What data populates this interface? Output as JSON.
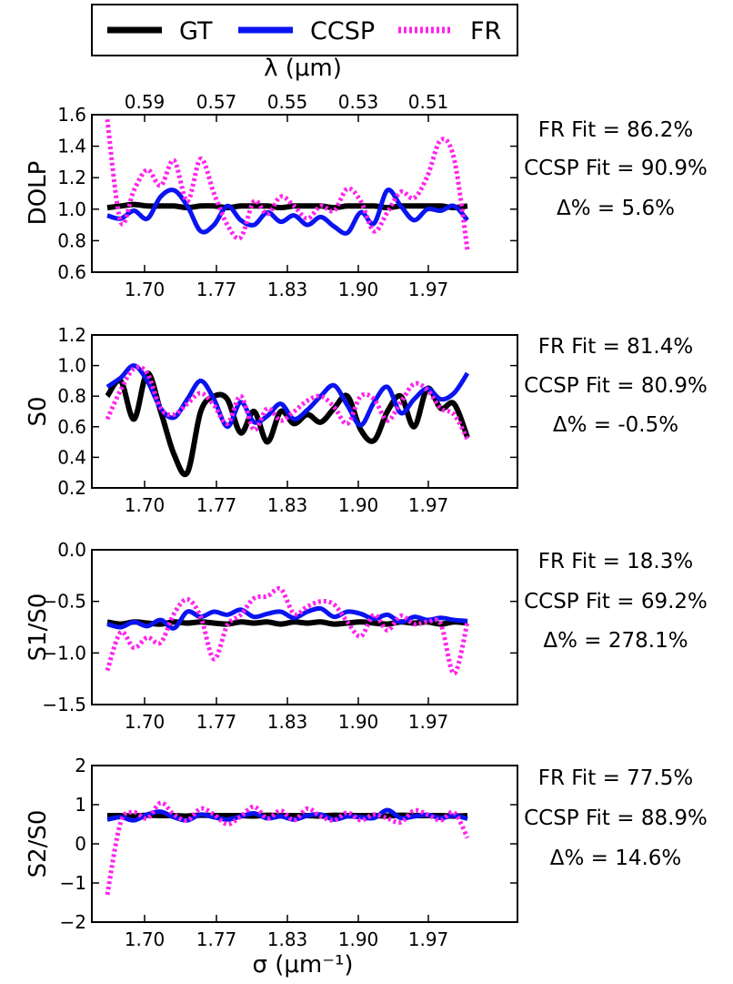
{
  "legend": [
    {
      "label": "GT",
      "color": "#000000",
      "style": "solid"
    },
    {
      "label": "CCSP",
      "color": "#0a14f0",
      "style": "solid"
    },
    {
      "label": "FR",
      "color": "#ff22ee",
      "style": "dotted"
    }
  ],
  "top_axis": {
    "label": "λ (μm)",
    "tick_labels": [
      "0.59",
      "0.57",
      "0.55",
      "0.53",
      "0.51"
    ]
  },
  "bottom_axis": {
    "label": "σ (μm⁻¹)",
    "tick_labels": [
      "1.70",
      "1.77",
      "1.83",
      "1.90",
      "1.97"
    ]
  },
  "chart_data": [
    {
      "type": "line",
      "ylabel": "DOLP",
      "ylim": [
        0.6,
        1.6
      ],
      "yticks": [
        "0.6",
        "0.8",
        "1.0",
        "1.2",
        "1.4",
        "1.6"
      ],
      "annotations": [
        "FR Fit = 86.2%",
        "CCSP Fit = 90.9%",
        "Δ% = 5.6%"
      ],
      "series": [
        {
          "name": "GT",
          "values": [
            1.01,
            1.02,
            1.03,
            1.02,
            1.02,
            1.02,
            1.01,
            1.02,
            1.02,
            1.01,
            1.02,
            1.02,
            1.02,
            1.01,
            1.02,
            1.02,
            1.02,
            1.01,
            1.02,
            1.02,
            1.02,
            1.01,
            1.02,
            1.02,
            1.02,
            1.02,
            1.01,
            1.02
          ]
        },
        {
          "name": "CCSP",
          "values": [
            0.96,
            0.94,
            0.99,
            0.94,
            1.08,
            1.12,
            1.02,
            0.86,
            0.9,
            1.02,
            0.93,
            0.9,
            0.98,
            0.92,
            0.96,
            0.9,
            0.95,
            0.89,
            0.85,
            0.98,
            0.91,
            1.12,
            1.02,
            0.93,
            1.0,
            0.99,
            1.02,
            0.93
          ]
        },
        {
          "name": "FR",
          "values": [
            1.57,
            0.92,
            1.12,
            1.25,
            1.15,
            1.31,
            1.05,
            1.32,
            1.1,
            0.9,
            0.82,
            1.05,
            0.97,
            1.08,
            1.02,
            0.94,
            1.02,
            0.99,
            1.13,
            1.05,
            0.86,
            0.98,
            1.11,
            1.07,
            1.21,
            1.44,
            1.32,
            0.74
          ]
        }
      ]
    },
    {
      "type": "line",
      "ylabel": "S0",
      "ylim": [
        0.2,
        1.2
      ],
      "yticks": [
        "0.2",
        "0.4",
        "0.6",
        "0.8",
        "1.0",
        "1.2"
      ],
      "annotations": [
        "FR Fit = 81.4%",
        "CCSP Fit = 80.9%",
        "Δ% = -0.5%"
      ],
      "series": [
        {
          "name": "GT",
          "values": [
            0.8,
            0.9,
            0.65,
            0.95,
            0.7,
            0.42,
            0.3,
            0.7,
            0.8,
            0.78,
            0.56,
            0.7,
            0.5,
            0.7,
            0.62,
            0.68,
            0.63,
            0.72,
            0.8,
            0.58,
            0.51,
            0.7,
            0.8,
            0.6,
            0.85,
            0.72,
            0.75,
            0.53
          ]
        },
        {
          "name": "CCSP",
          "values": [
            0.86,
            0.92,
            1.0,
            0.9,
            0.72,
            0.66,
            0.78,
            0.9,
            0.78,
            0.6,
            0.76,
            0.63,
            0.67,
            0.75,
            0.65,
            0.71,
            0.8,
            0.87,
            0.74,
            0.61,
            0.76,
            0.86,
            0.69,
            0.78,
            0.85,
            0.78,
            0.82,
            0.95
          ]
        },
        {
          "name": "FR",
          "values": [
            0.65,
            0.84,
            0.98,
            0.95,
            0.72,
            0.68,
            0.75,
            0.82,
            0.74,
            0.62,
            0.8,
            0.58,
            0.72,
            0.64,
            0.7,
            0.77,
            0.8,
            0.73,
            0.62,
            0.8,
            0.78,
            0.64,
            0.76,
            0.88,
            0.84,
            0.72,
            0.68,
            0.52
          ]
        }
      ]
    },
    {
      "type": "line",
      "ylabel": "S1/S0",
      "ylim": [
        -1.5,
        0.0
      ],
      "yticks": [
        "-1.5",
        "-1.0",
        "-0.5",
        "0.0"
      ],
      "annotations": [
        "FR Fit = 18.3%",
        "CCSP Fit = 69.2%",
        "Δ% = 278.1%"
      ],
      "series": [
        {
          "name": "GT",
          "values": [
            -0.7,
            -0.72,
            -0.7,
            -0.71,
            -0.72,
            -0.7,
            -0.71,
            -0.7,
            -0.71,
            -0.72,
            -0.7,
            -0.71,
            -0.7,
            -0.72,
            -0.7,
            -0.71,
            -0.7,
            -0.72,
            -0.71,
            -0.7,
            -0.71,
            -0.72,
            -0.7,
            -0.71,
            -0.7,
            -0.72,
            -0.7,
            -0.71
          ]
        },
        {
          "name": "CCSP",
          "values": [
            -0.72,
            -0.75,
            -0.7,
            -0.74,
            -0.68,
            -0.76,
            -0.6,
            -0.65,
            -0.6,
            -0.63,
            -0.58,
            -0.65,
            -0.62,
            -0.6,
            -0.66,
            -0.6,
            -0.57,
            -0.65,
            -0.6,
            -0.62,
            -0.67,
            -0.63,
            -0.7,
            -0.65,
            -0.68,
            -0.66,
            -0.68,
            -0.69
          ]
        },
        {
          "name": "FR",
          "values": [
            -1.17,
            -0.8,
            -0.95,
            -0.85,
            -0.9,
            -0.62,
            -0.48,
            -0.65,
            -1.06,
            -0.73,
            -0.63,
            -0.47,
            -0.45,
            -0.38,
            -0.62,
            -0.55,
            -0.5,
            -0.53,
            -0.7,
            -0.84,
            -0.63,
            -0.78,
            -0.64,
            -0.72,
            -0.7,
            -0.72,
            -1.2,
            -0.7
          ]
        }
      ]
    },
    {
      "type": "line",
      "ylabel": "S2/S0",
      "ylim": [
        -2,
        2
      ],
      "yticks": [
        "-2",
        "-1",
        "0",
        "1",
        "2"
      ],
      "annotations": [
        "FR Fit = 77.5%",
        "CCSP Fit = 88.9%",
        "Δ% = 14.6%"
      ],
      "series": [
        {
          "name": "GT",
          "values": [
            0.72,
            0.72,
            0.71,
            0.73,
            0.72,
            0.72,
            0.71,
            0.73,
            0.72,
            0.72,
            0.72,
            0.71,
            0.73,
            0.72,
            0.72,
            0.72,
            0.71,
            0.73,
            0.72,
            0.72,
            0.72,
            0.71,
            0.73,
            0.72,
            0.72,
            0.72,
            0.71,
            0.72
          ]
        },
        {
          "name": "CCSP",
          "values": [
            0.62,
            0.68,
            0.6,
            0.75,
            0.82,
            0.68,
            0.6,
            0.75,
            0.68,
            0.62,
            0.7,
            0.78,
            0.65,
            0.7,
            0.62,
            0.72,
            0.75,
            0.62,
            0.7,
            0.68,
            0.66,
            0.86,
            0.66,
            0.7,
            0.74,
            0.66,
            0.72,
            0.64
          ]
        },
        {
          "name": "FR",
          "values": [
            -1.3,
            0.55,
            0.8,
            0.65,
            1.05,
            0.75,
            0.6,
            0.9,
            0.75,
            0.5,
            0.7,
            0.95,
            0.65,
            0.85,
            0.6,
            0.9,
            0.7,
            0.6,
            0.8,
            0.6,
            0.75,
            0.65,
            0.55,
            0.85,
            0.75,
            0.6,
            0.8,
            0.15
          ]
        }
      ]
    }
  ]
}
